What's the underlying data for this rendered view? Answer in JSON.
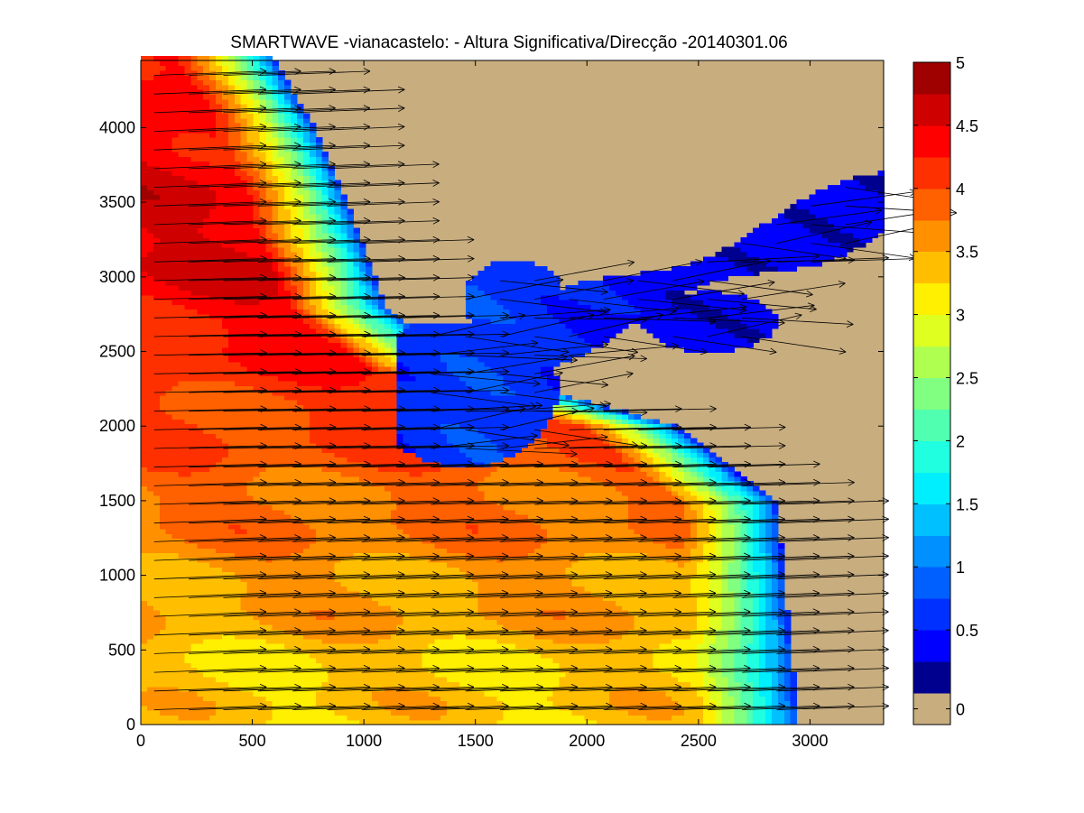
{
  "chart_data": {
    "type": "heatmap",
    "title": "SMARTWAVE -vianacastelo: - Altura Significativa/Direcção -20140301.06",
    "xlabel": "",
    "ylabel": "",
    "xlim": [
      0,
      3330
    ],
    "ylim": [
      0,
      4450
    ],
    "x_ticks": [
      0,
      500,
      1000,
      1500,
      2000,
      2500,
      3000
    ],
    "y_ticks": [
      0,
      500,
      1000,
      1500,
      2000,
      2500,
      3000,
      3500,
      4000
    ],
    "x_tick_labels": [
      "0",
      "500",
      "1000",
      "1500",
      "2000",
      "2500",
      "3000"
    ],
    "y_tick_labels": [
      "0",
      "500",
      "1000",
      "1500",
      "2000",
      "2500",
      "3000",
      "3500",
      "4000"
    ],
    "colorbar": {
      "ticks": [
        0,
        0.5,
        1,
        1.5,
        2,
        2.5,
        3,
        3.5,
        4,
        4.5,
        5
      ],
      "tick_labels": [
        "0",
        "0.5",
        "1",
        "1.5",
        "2",
        "2.5",
        "3",
        "3.5",
        "4",
        "4.5",
        "5"
      ],
      "levels": [
        {
          "value": 0,
          "color": "#c8ad7f"
        },
        {
          "value": 0.25,
          "color": "#00008f"
        },
        {
          "value": 0.5,
          "color": "#0000ff"
        },
        {
          "value": 0.75,
          "color": "#0030ff"
        },
        {
          "value": 1.0,
          "color": "#0060ff"
        },
        {
          "value": 1.25,
          "color": "#0090ff"
        },
        {
          "value": 1.5,
          "color": "#00c0ff"
        },
        {
          "value": 1.75,
          "color": "#00efff"
        },
        {
          "value": 2.0,
          "color": "#20ffdf"
        },
        {
          "value": 2.25,
          "color": "#50ffaf"
        },
        {
          "value": 2.5,
          "color": "#80ff80"
        },
        {
          "value": 2.75,
          "color": "#afff50"
        },
        {
          "value": 3.0,
          "color": "#dfff20"
        },
        {
          "value": 3.25,
          "color": "#ffef00"
        },
        {
          "value": 3.5,
          "color": "#ffbf00"
        },
        {
          "value": 3.75,
          "color": "#ff9000"
        },
        {
          "value": 4.0,
          "color": "#ff6000"
        },
        {
          "value": 4.25,
          "color": "#ff3000"
        },
        {
          "value": 4.5,
          "color": "#ff0000"
        },
        {
          "value": 4.75,
          "color": "#cf0000"
        },
        {
          "value": 5.0,
          "color": "#9f0000"
        }
      ]
    },
    "land_color": "#c8ad7f",
    "arrow_color": "#000000",
    "field": {
      "description_only": false,
      "mainland_edge_y": [
        0,
        1500,
        1650,
        2000,
        2400,
        2800,
        3200,
        3600,
        4000,
        4450
      ],
      "mainland_edge_x": [
        2950,
        2850,
        2700,
        2400,
        1450,
        1100,
        1000,
        900,
        780,
        600
      ],
      "offshore_hs_max": 4.6,
      "offshore_hs_min": 3.4,
      "wave_direction_deg": 5
    }
  }
}
